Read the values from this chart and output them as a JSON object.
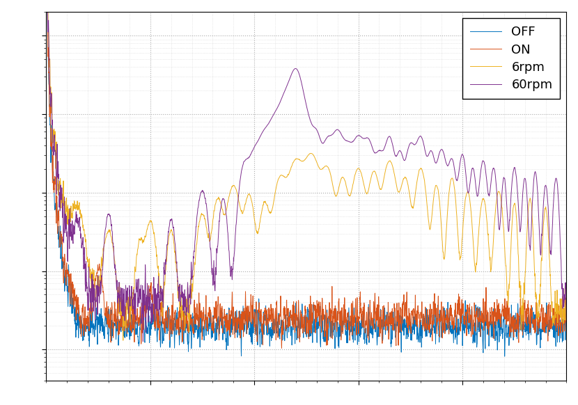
{
  "legend_labels": [
    "OFF",
    "ON",
    "6rpm",
    "60rpm"
  ],
  "colors": [
    "#0072BD",
    "#D95319",
    "#EDB120",
    "#7E2F8E"
  ],
  "xlim": [
    1,
    500
  ],
  "background_color": "#ffffff",
  "grid_color": "#aaaaaa",
  "seed": 42
}
